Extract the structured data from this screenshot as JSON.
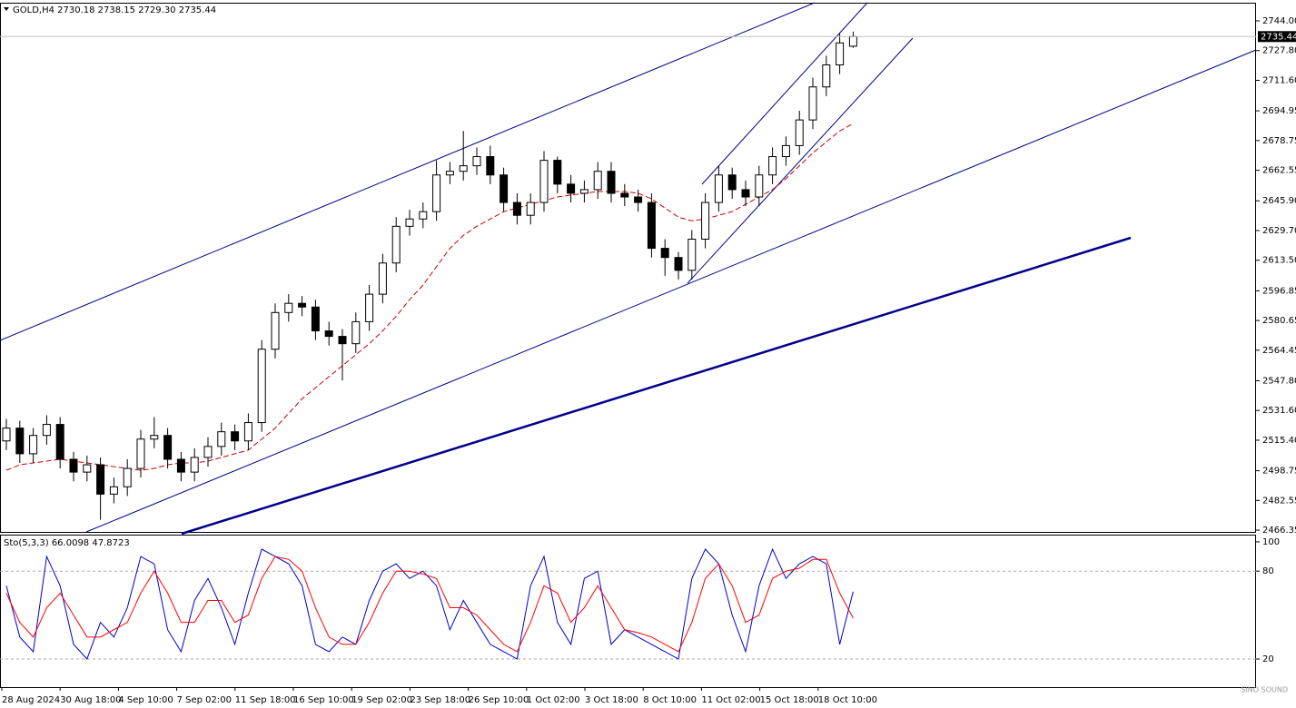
{
  "chart_data": [
    {
      "type": "candlestick",
      "title": "GOLD,H4  2730.18 2738.15 2729.30 2735.44",
      "open": [
        2515,
        2522,
        2508,
        2518,
        2524,
        2505,
        2498,
        2502,
        2486,
        2490,
        2500,
        2516,
        2518,
        2505,
        2498,
        2506,
        2512,
        2520,
        2515,
        2525,
        2565,
        2585,
        2590,
        2588,
        2575,
        2572,
        2568,
        2580,
        2595,
        2612,
        2632,
        2636,
        2640,
        2660,
        2662,
        2665,
        2670,
        2660,
        2645,
        2638,
        2645,
        2668,
        2655,
        2650,
        2652,
        2662,
        2650,
        2648,
        2645,
        2620,
        2615,
        2608,
        2625,
        2645,
        2660,
        2652,
        2648,
        2660,
        2670,
        2676,
        2690,
        2708,
        2720,
        2730.18
      ],
      "high": [
        2527,
        2526,
        2522,
        2529,
        2528,
        2509,
        2507,
        2506,
        2495,
        2505,
        2521,
        2528,
        2522,
        2509,
        2511,
        2517,
        2525,
        2524,
        2530,
        2570,
        2590,
        2595,
        2594,
        2592,
        2580,
        2576,
        2585,
        2600,
        2617,
        2637,
        2641,
        2645,
        2668,
        2667,
        2684,
        2675,
        2676,
        2664,
        2650,
        2650,
        2673,
        2670,
        2660,
        2657,
        2667,
        2667,
        2655,
        2652,
        2650,
        2625,
        2618,
        2630,
        2650,
        2665,
        2664,
        2657,
        2665,
        2675,
        2681,
        2695,
        2713,
        2725,
        2737,
        2738.15
      ],
      "low": [
        2510,
        2503,
        2503,
        2513,
        2500,
        2493,
        2493,
        2472,
        2481,
        2485,
        2495,
        2511,
        2500,
        2493,
        2493,
        2501,
        2507,
        2510,
        2510,
        2520,
        2560,
        2580,
        2583,
        2570,
        2567,
        2548,
        2563,
        2575,
        2590,
        2607,
        2627,
        2631,
        2635,
        2655,
        2657,
        2660,
        2655,
        2640,
        2633,
        2633,
        2640,
        2650,
        2645,
        2645,
        2647,
        2645,
        2643,
        2640,
        2615,
        2605,
        2603,
        2603,
        2620,
        2640,
        2647,
        2643,
        2643,
        2655,
        2665,
        2671,
        2685,
        2703,
        2715,
        2729.3
      ],
      "close": [
        2522,
        2508,
        2518,
        2524,
        2505,
        2498,
        2502,
        2486,
        2490,
        2500,
        2516,
        2518,
        2505,
        2498,
        2506,
        2512,
        2520,
        2515,
        2525,
        2565,
        2585,
        2590,
        2588,
        2575,
        2572,
        2568,
        2580,
        2595,
        2612,
        2632,
        2636,
        2640,
        2660,
        2662,
        2665,
        2670,
        2660,
        2645,
        2638,
        2645,
        2668,
        2655,
        2650,
        2652,
        2662,
        2650,
        2648,
        2645,
        2620,
        2615,
        2608,
        2625,
        2645,
        2660,
        2652,
        2648,
        2660,
        2670,
        2676,
        2690,
        2708,
        2720,
        2732,
        2735.44
      ],
      "ma": {
        "color": "#cc0000",
        "values": [
          2499,
          2502,
          2503,
          2504,
          2505,
          2504,
          2503,
          2502,
          2501,
          2500,
          2499,
          2500,
          2502,
          2503,
          2503,
          2504,
          2506,
          2508,
          2510,
          2516,
          2522,
          2530,
          2538,
          2544,
          2550,
          2556,
          2562,
          2568,
          2575,
          2583,
          2592,
          2600,
          2610,
          2620,
          2627,
          2632,
          2636,
          2640,
          2642,
          2644,
          2646,
          2648,
          2649,
          2650,
          2651,
          2651,
          2651,
          2650,
          2647,
          2642,
          2637,
          2635,
          2636,
          2638,
          2640,
          2644,
          2648,
          2652,
          2658,
          2665,
          2672,
          2678,
          2684,
          2688
        ]
      },
      "ylim": [
        2465.4,
        2753.9
      ],
      "yticks": [
        {
          "value": 2744,
          "label": "2744.00"
        },
        {
          "value": 2727.8,
          "label": "2727.80"
        },
        {
          "value": 2711.6,
          "label": "2711.60"
        },
        {
          "value": 2694.95,
          "label": "2694.95"
        },
        {
          "value": 2678.75,
          "label": "2678.75"
        },
        {
          "value": 2662.55,
          "label": "2662.55"
        },
        {
          "value": 2645.9,
          "label": "2645.90"
        },
        {
          "value": 2629.7,
          "label": "2629.70"
        },
        {
          "value": 2613.5,
          "label": "2613.50"
        },
        {
          "value": 2596.85,
          "label": "2596.85"
        },
        {
          "value": 2580.65,
          "label": "2580.65"
        },
        {
          "value": 2564.45,
          "label": "2564.45"
        },
        {
          "value": 2547.8,
          "label": "2547.80"
        },
        {
          "value": 2531.6,
          "label": "2531.60"
        },
        {
          "value": 2515.4,
          "label": "2515.40"
        },
        {
          "value": 2498.75,
          "label": "2498.75"
        },
        {
          "value": 2482.55,
          "label": "2482.55"
        },
        {
          "value": 2466.35,
          "label": "2466.35"
        }
      ],
      "x_labels": [
        "28 Aug 2024",
        "30 Aug 18:00",
        "4 Sep 10:00",
        "7 Sep 02:00",
        "11 Sep 18:00",
        "16 Sep 10:00",
        "19 Sep 02:00",
        "23 Sep 18:00",
        "26 Sep 10:00",
        "1 Oct 02:00",
        "3 Oct 18:00",
        "8 Oct 10:00",
        "11 Oct 02:00",
        "15 Oct 18:00",
        "18 Oct 10:00"
      ]
    },
    {
      "type": "line",
      "title": "Sto(5,3,3) 66.0098 47.8723",
      "series": [
        {
          "color": "#0000cd",
          "values": [
            70,
            35,
            25,
            90,
            70,
            30,
            20,
            45,
            35,
            55,
            90,
            85,
            40,
            25,
            60,
            75,
            55,
            30,
            65,
            95,
            90,
            85,
            70,
            30,
            25,
            35,
            30,
            60,
            80,
            85,
            75,
            80,
            70,
            40,
            60,
            45,
            30,
            25,
            20,
            70,
            90,
            45,
            30,
            75,
            80,
            30,
            40,
            35,
            30,
            25,
            20,
            75,
            95,
            85,
            50,
            25,
            70,
            95,
            75,
            85,
            90,
            85,
            30,
            66.0098
          ]
        },
        {
          "color": "#ff0000",
          "values": [
            65,
            45,
            35,
            55,
            65,
            50,
            35,
            35,
            40,
            45,
            65,
            80,
            65,
            45,
            45,
            60,
            60,
            45,
            50,
            75,
            90,
            88,
            80,
            55,
            35,
            30,
            30,
            45,
            65,
            80,
            80,
            78,
            75,
            55,
            55,
            50,
            40,
            30,
            25,
            45,
            70,
            65,
            45,
            55,
            70,
            55,
            40,
            38,
            35,
            30,
            25,
            45,
            75,
            85,
            70,
            45,
            50,
            75,
            80,
            82,
            88,
            88,
            65,
            47.8723
          ]
        }
      ],
      "ylim": [
        0.8,
        104.3
      ],
      "yticks": [
        100,
        80,
        20
      ],
      "levels": [
        80,
        20
      ]
    }
  ],
  "watermark": "SINO SOUND"
}
